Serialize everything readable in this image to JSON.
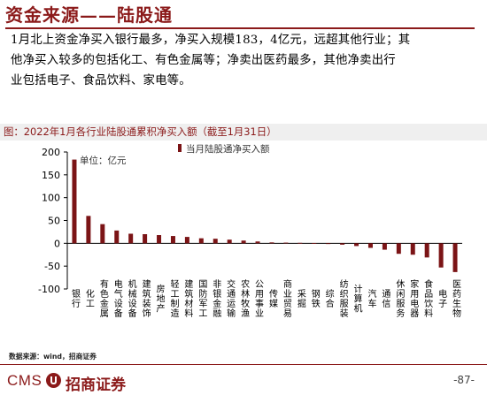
{
  "page": {
    "title": "资金来源——陆股通",
    "summary_lines": [
      "1月北上资金净买入银行最多，净买入规模183，4亿元，远超其他行业；其",
      "他净买入较多的包括化工、有色金属等；净卖出医药最多，其他净卖出行",
      "业包括电子、食品饮料、家电等。"
    ],
    "chart_caption": "图：2022年1月各行业陆股通累积净买入额（截至1月31日）",
    "source": "数据来源：wind，招商证券",
    "logo_text": "CMS",
    "logo_cn": "招商证券",
    "page_number": "-87-"
  },
  "colors": {
    "bar": "#7b1416",
    "brand": "#8b1a1a"
  },
  "chart_data": {
    "type": "bar",
    "unit_label": "单位：亿元",
    "legend": "当月陆股通净买入额",
    "legend_position": "top",
    "ylim": [
      -100,
      200
    ],
    "yticks": [
      -100,
      -50,
      0,
      50,
      100,
      150,
      200
    ],
    "grid": false,
    "categories": [
      "银行",
      "化工",
      "有色金属",
      "电气设备",
      "机械设备",
      "建筑装饰",
      "房地产",
      "轻工制造",
      "建筑材料",
      "国防军工",
      "非银金融",
      "交通运输",
      "农林牧渔",
      "公用事业",
      "传媒",
      "商业贸易",
      "采掘",
      "钢铁",
      "综合",
      "纺织服装",
      "计算机",
      "汽车",
      "通信",
      "休闲服务",
      "家用电器",
      "食品饮料",
      "电子",
      "医药生物"
    ],
    "series": [
      {
        "name": "当月陆股通净买入额",
        "values": [
          183.4,
          60,
          42,
          28,
          21,
          20,
          18,
          16,
          14,
          11,
          10,
          8,
          6,
          4,
          2,
          1.5,
          1,
          0.5,
          -1,
          -3,
          -6,
          -10,
          -14,
          -23,
          -25,
          -31,
          -53,
          -63
        ]
      }
    ]
  }
}
